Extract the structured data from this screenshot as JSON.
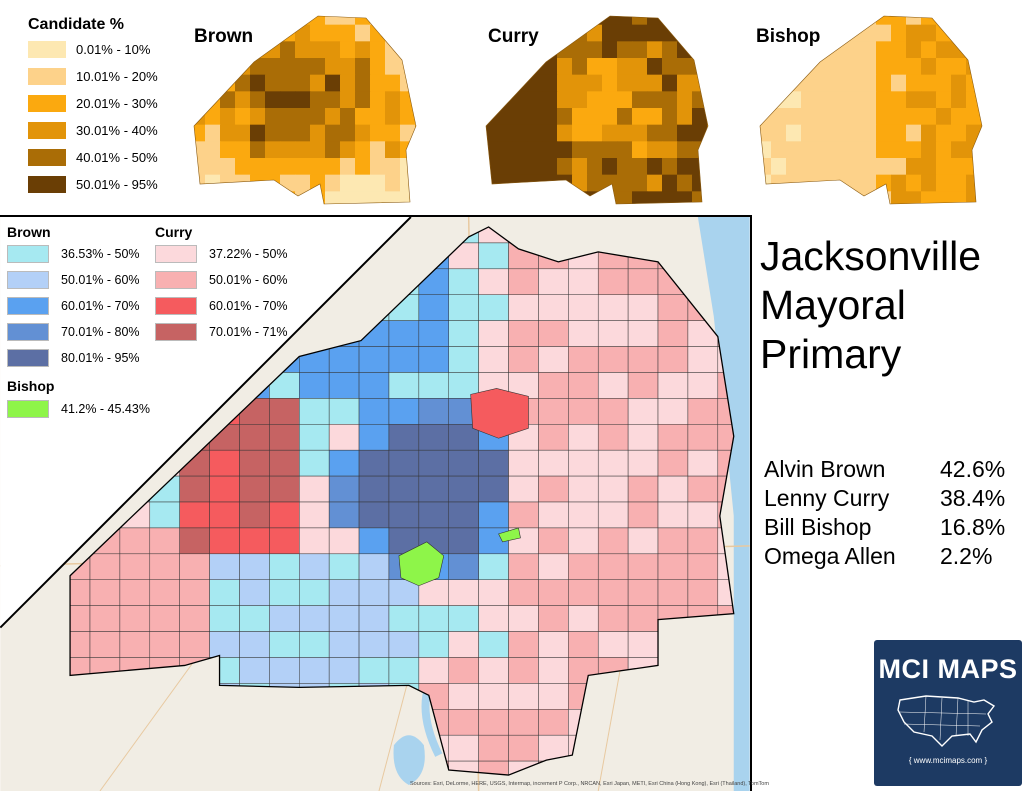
{
  "top_legend": {
    "title": "Candidate %",
    "items": [
      {
        "label": "0.01% - 10%",
        "color": "#fde8b2"
      },
      {
        "label": "10.01% - 20%",
        "color": "#fdd28a"
      },
      {
        "label": "20.01% - 30%",
        "color": "#fba90f"
      },
      {
        "label": "30.01% - 40%",
        "color": "#e29409"
      },
      {
        "label": "40.01% - 50%",
        "color": "#aa6d06"
      },
      {
        "label": "50.01% - 95%",
        "color": "#6a3e05"
      }
    ]
  },
  "small_maps": [
    {
      "title": "Brown",
      "scheme": "brown"
    },
    {
      "title": "Curry",
      "scheme": "curry"
    },
    {
      "title": "Bishop",
      "scheme": "bishop"
    }
  ],
  "main_legend": {
    "brown": {
      "title": "Brown",
      "items": [
        {
          "label": "36.53% - 50%",
          "color": "#a6e9f1"
        },
        {
          "label": "50.01% - 60%",
          "color": "#b3d0f7"
        },
        {
          "label": "60.01% - 70%",
          "color": "#5aa1f0"
        },
        {
          "label": "70.01% - 80%",
          "color": "#6290d4"
        },
        {
          "label": "80.01% - 95%",
          "color": "#5c6fa4"
        }
      ]
    },
    "curry": {
      "title": "Curry",
      "items": [
        {
          "label": "37.22% - 50%",
          "color": "#fcd9dc"
        },
        {
          "label": "50.01% - 60%",
          "color": "#f8b0b1"
        },
        {
          "label": "60.01% - 70%",
          "color": "#f55b5e"
        },
        {
          "label": "70.01% - 71%",
          "color": "#c66363"
        }
      ]
    },
    "bishop": {
      "title": "Bishop",
      "items": [
        {
          "label": "41.2% - 45.43%",
          "color": "#8ef549"
        }
      ]
    }
  },
  "title_lines": [
    "Jacksonville",
    "Mayoral",
    "Primary"
  ],
  "results": [
    {
      "name": "Alvin Brown",
      "pct": "42.6%"
    },
    {
      "name": "Lenny Curry",
      "pct": "38.4%"
    },
    {
      "name": "Bill Bishop",
      "pct": "16.8%"
    },
    {
      "name": "Omega Allen",
      "pct": "2.2%"
    }
  ],
  "logo": {
    "text": "MCI MAPS",
    "url": "{ www.mcimaps.com }"
  },
  "credits": "Sources: Esri, DeLorme, HERE, USGS, Intermap, increment P Corp., NRCAN, Esri Japan, METI, Esri China (Hong Kong), Esri (Thailand), TomTom",
  "colors": {
    "water": "#a9d3ee",
    "land": "#f1ede4",
    "border": "#000000"
  }
}
